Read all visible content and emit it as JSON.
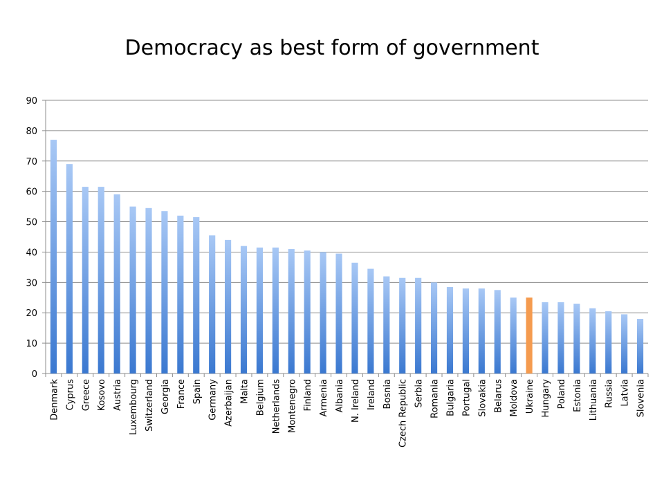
{
  "chart_data": {
    "type": "bar",
    "title": "Democracy as best form of government",
    "xlabel": "",
    "ylabel": "",
    "ylim": [
      0,
      90
    ],
    "yticks": [
      0,
      10,
      20,
      30,
      40,
      50,
      60,
      70,
      80,
      90
    ],
    "grid": true,
    "legend": "none",
    "categories": [
      "Denmark",
      "Cyprus",
      "Greece",
      "Kosovo",
      "Austria",
      "Luxembourg",
      "Switzerland",
      "Georgia",
      "France",
      "Spain",
      "Germany",
      "Azerbaijan",
      "Malta",
      "Belgium",
      "Netherlands",
      "Montenegro",
      "Finland",
      "Armenia",
      "Albania",
      "N. Ireland",
      "Ireland",
      "Bosnia",
      "Czech Republic",
      "Serbia",
      "Romania",
      "Bulgaria",
      "Portugal",
      "Slovakia",
      "Belarus",
      "Moldova",
      "Ukraine",
      "Hungary",
      "Poland",
      "Estonia",
      "Lithuania",
      "Russia",
      "Latvia",
      "Slovenia"
    ],
    "values": [
      77,
      69,
      61.5,
      61.5,
      59,
      55,
      54.5,
      53.5,
      52,
      51.5,
      45.5,
      44,
      42,
      41.5,
      41.5,
      41,
      40.5,
      40,
      39.5,
      36.5,
      34.5,
      32,
      31.5,
      31.5,
      30,
      28.5,
      28,
      28,
      27.5,
      25,
      25,
      23.5,
      23.5,
      23,
      21.5,
      20.5,
      19.5,
      18
    ],
    "highlight": "Ukraine",
    "colors": {
      "bar_top": "#a8c8f5",
      "bar_bottom": "#3a78d0",
      "highlight": "#f59b4f",
      "grid": "#8c8c8c",
      "axis": "#8c8c8c",
      "text": "#000000"
    }
  }
}
